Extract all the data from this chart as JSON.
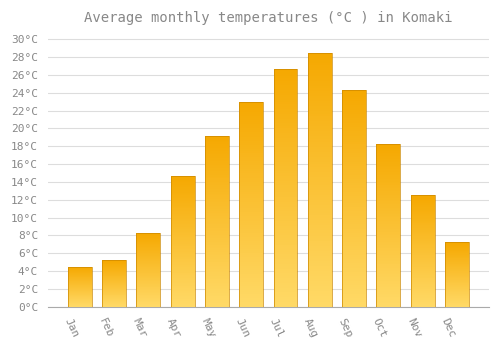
{
  "title": "Average monthly temperatures (°C ) in Komaki",
  "months": [
    "Jan",
    "Feb",
    "Mar",
    "Apr",
    "May",
    "Jun",
    "Jul",
    "Aug",
    "Sep",
    "Oct",
    "Nov",
    "Dec"
  ],
  "values": [
    4.5,
    5.2,
    8.3,
    14.7,
    19.2,
    23.0,
    26.7,
    28.5,
    24.3,
    18.2,
    12.5,
    7.2
  ],
  "bar_color_top": "#F5A800",
  "bar_color_bottom": "#FFD966",
  "bar_edge_color": "#CC8800",
  "background_color": "#FFFFFF",
  "grid_color": "#DDDDDD",
  "text_color": "#888888",
  "ylim": [
    0,
    31
  ],
  "ytick_step": 2,
  "title_fontsize": 10,
  "tick_fontsize": 8,
  "xlabel_rotation": -65
}
